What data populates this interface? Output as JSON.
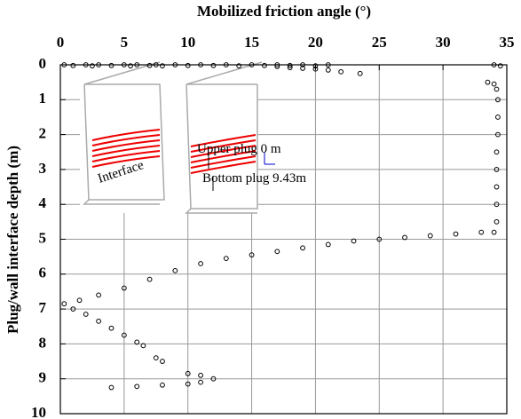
{
  "chart_data": {
    "type": "scatter",
    "x_label": "Mobilized friction angle (°)",
    "y_label": "Plug/wall interface depth (m)",
    "x_axis_position": "top",
    "y_reversed": true,
    "grid": true,
    "color": "#000000",
    "xlim": [
      0,
      35
    ],
    "xticks": [
      0,
      5,
      10,
      15,
      20,
      25,
      30,
      35
    ],
    "ylim": [
      0,
      10
    ],
    "yticks": [
      0,
      1,
      2,
      3,
      4,
      5,
      6,
      7,
      8,
      9,
      10
    ],
    "annotations": [
      "Upper plug 0 m",
      "Bottom plug 9.43m",
      "Interface"
    ],
    "x": [
      0.3,
      1,
      2,
      2.5,
      3,
      4,
      5,
      5.5,
      6,
      7,
      7.5,
      8,
      9,
      10,
      11,
      12,
      13,
      14,
      15,
      16,
      17,
      18,
      19,
      20,
      21,
      34,
      34.5,
      17,
      18,
      19,
      20,
      21,
      22,
      23.5,
      33.5,
      34,
      34.2,
      34.3,
      34.3,
      34.3,
      34.2,
      34.2,
      34.2,
      34.2,
      34.2,
      34,
      33,
      31,
      29,
      27,
      25,
      23,
      21,
      19,
      17,
      15,
      13,
      11,
      9,
      7,
      5,
      3,
      1.5,
      0.3,
      1,
      2,
      3,
      4,
      5,
      6,
      6.5,
      7.5,
      8,
      10,
      11,
      12,
      11,
      10,
      8,
      6,
      4
    ],
    "y": [
      0,
      0.02,
      0,
      0.03,
      0,
      0.02,
      0,
      0.03,
      0,
      0.02,
      0,
      0.03,
      0,
      0.02,
      0,
      0.02,
      0,
      0.03,
      0,
      0.02,
      0,
      0.02,
      0,
      0.03,
      0,
      0,
      0.03,
      0.05,
      0.08,
      0.1,
      0.12,
      0.15,
      0.2,
      0.25,
      0.5,
      0.55,
      0.7,
      1,
      1.5,
      2,
      2.5,
      3,
      3.5,
      4,
      4.5,
      4.8,
      4.8,
      4.85,
      4.9,
      4.95,
      5.0,
      5.05,
      5.15,
      5.25,
      5.35,
      5.45,
      5.55,
      5.7,
      5.9,
      6.15,
      6.4,
      6.6,
      6.75,
      6.85,
      7.0,
      7.15,
      7.35,
      7.55,
      7.75,
      7.95,
      8.05,
      8.4,
      8.5,
      8.85,
      8.9,
      9.0,
      9.1,
      9.15,
      9.18,
      9.22,
      9.25
    ]
  }
}
